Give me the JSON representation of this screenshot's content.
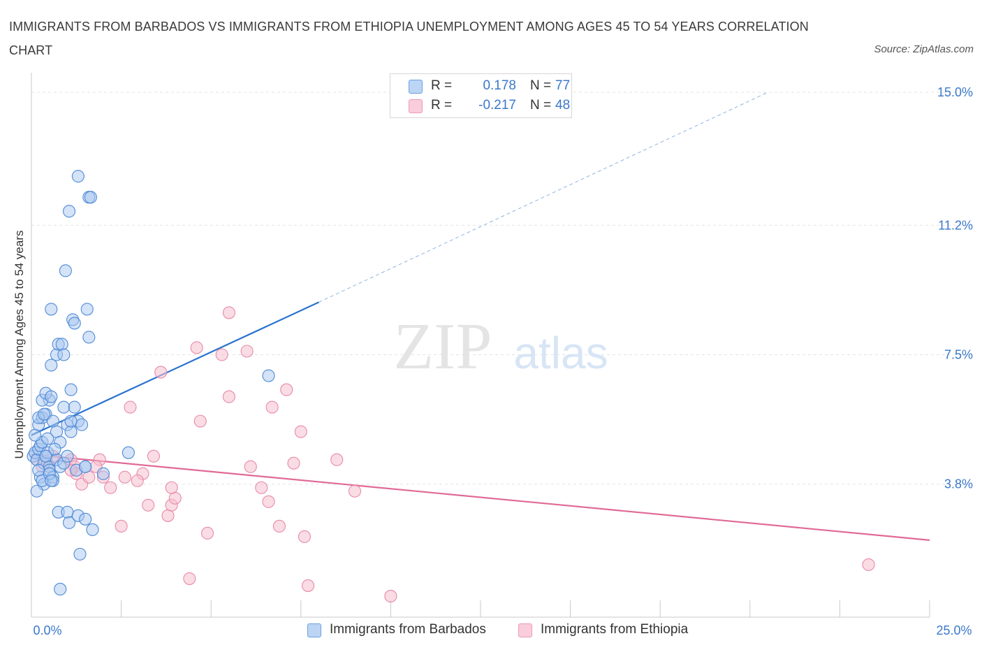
{
  "title": "IMMIGRANTS FROM BARBADOS VS IMMIGRANTS FROM ETHIOPIA UNEMPLOYMENT AMONG AGES 45 TO 54 YEARS CORRELATION CHART",
  "source": "Source: ZipAtlas.com",
  "watermark": {
    "zip": "ZIP",
    "atlas": "atlas"
  },
  "legend": {
    "series1": {
      "r_label": "R =",
      "r_value": "0.178",
      "n_label": "N =",
      "n_value": "77"
    },
    "series2": {
      "r_label": "R =",
      "r_value": "-0.217",
      "n_label": "N =",
      "n_value": "48"
    }
  },
  "colors": {
    "blue_fill": "#a9c8ef",
    "blue_stroke": "#4f8ad6",
    "blue_line": "#2a72cf",
    "pink_fill": "#f6bfd0",
    "pink_stroke": "#e78aa8",
    "pink_line": "#e06a96",
    "tick_text": "#3a78c9"
  },
  "chart_data": {
    "type": "scatter",
    "title": "IMMIGRANTS FROM BARBADOS VS IMMIGRANTS FROM ETHIOPIA UNEMPLOYMENT AMONG AGES 45 TO 54 YEARS CORRELATION CHART",
    "xlabel": "",
    "ylabel": "Unemployment Among Ages 45 to 54 years",
    "xlim": [
      0,
      25
    ],
    "ylim": [
      0,
      15
    ],
    "x_tick_labels": {
      "min": "0.0%",
      "max": "25.0%"
    },
    "y_ticks": [
      {
        "value": 3.8,
        "label": "3.8%"
      },
      {
        "value": 7.5,
        "label": "7.5%"
      },
      {
        "value": 11.2,
        "label": "11.2%"
      },
      {
        "value": 15.0,
        "label": "15.0%"
      }
    ],
    "grid": true,
    "series": [
      {
        "name": "Immigrants from Barbados",
        "r": 0.178,
        "n": 77,
        "trend": {
          "x0": 0,
          "y0": 5.2,
          "x1": 8.0,
          "y1": 9.0,
          "dashed_to_x": 20.5,
          "dashed_to_y": 15.0
        },
        "points": [
          [
            0.05,
            4.6
          ],
          [
            0.1,
            4.7
          ],
          [
            0.15,
            4.5
          ],
          [
            0.2,
            4.8
          ],
          [
            0.25,
            4.9
          ],
          [
            0.3,
            5.0
          ],
          [
            0.35,
            4.4
          ],
          [
            0.4,
            4.6
          ],
          [
            0.45,
            4.7
          ],
          [
            0.5,
            4.3
          ],
          [
            0.1,
            5.2
          ],
          [
            0.2,
            5.5
          ],
          [
            0.3,
            5.7
          ],
          [
            0.4,
            5.8
          ],
          [
            0.5,
            6.2
          ],
          [
            0.6,
            5.6
          ],
          [
            0.7,
            5.3
          ],
          [
            0.8,
            5.0
          ],
          [
            0.25,
            4.0
          ],
          [
            0.35,
            3.8
          ],
          [
            0.5,
            4.2
          ],
          [
            0.6,
            4.0
          ],
          [
            0.7,
            4.5
          ],
          [
            0.8,
            4.3
          ],
          [
            0.9,
            4.4
          ],
          [
            1.0,
            4.6
          ],
          [
            0.6,
            3.9
          ],
          [
            0.9,
            6.0
          ],
          [
            1.0,
            5.5
          ],
          [
            1.1,
            5.3
          ],
          [
            0.15,
            3.6
          ],
          [
            0.3,
            6.2
          ],
          [
            0.4,
            6.4
          ],
          [
            0.55,
            6.3
          ],
          [
            0.7,
            7.5
          ],
          [
            0.75,
            7.8
          ],
          [
            0.85,
            7.8
          ],
          [
            0.9,
            7.5
          ],
          [
            0.55,
            7.2
          ],
          [
            1.1,
            6.5
          ],
          [
            1.2,
            6.0
          ],
          [
            1.3,
            5.6
          ],
          [
            1.4,
            5.5
          ],
          [
            1.1,
            5.6
          ],
          [
            0.2,
            4.2
          ],
          [
            0.3,
            3.9
          ],
          [
            0.4,
            4.6
          ],
          [
            0.45,
            5.1
          ],
          [
            0.65,
            4.8
          ],
          [
            0.5,
            4.1
          ],
          [
            0.55,
            3.9
          ],
          [
            1.25,
            4.2
          ],
          [
            1.5,
            4.3
          ],
          [
            2.7,
            4.7
          ],
          [
            0.75,
            3.0
          ],
          [
            1.0,
            3.0
          ],
          [
            1.05,
            2.7
          ],
          [
            1.3,
            2.9
          ],
          [
            1.5,
            2.8
          ],
          [
            1.7,
            2.5
          ],
          [
            1.35,
            1.8
          ],
          [
            0.8,
            0.8
          ],
          [
            1.15,
            8.5
          ],
          [
            1.55,
            8.8
          ],
          [
            1.6,
            8.0
          ],
          [
            0.55,
            8.8
          ],
          [
            0.95,
            9.9
          ],
          [
            1.05,
            11.6
          ],
          [
            1.3,
            12.6
          ],
          [
            1.6,
            12.0
          ],
          [
            1.65,
            12.0
          ],
          [
            1.2,
            8.4
          ],
          [
            6.6,
            6.9
          ],
          [
            0.2,
            5.7
          ],
          [
            0.35,
            5.8
          ],
          [
            1.5,
            4.3
          ],
          [
            2.0,
            4.1
          ]
        ]
      },
      {
        "name": "Immigrants from Ethiopia",
        "r": -0.217,
        "n": 48,
        "trend": {
          "x0": 0,
          "y0": 4.65,
          "x1": 25,
          "y1": 2.2
        },
        "points": [
          [
            0.15,
            4.5
          ],
          [
            0.3,
            4.3
          ],
          [
            0.45,
            4.4
          ],
          [
            0.6,
            4.6
          ],
          [
            1.1,
            4.5
          ],
          [
            1.2,
            4.3
          ],
          [
            1.25,
            4.1
          ],
          [
            1.4,
            3.8
          ],
          [
            1.6,
            4.0
          ],
          [
            2.0,
            4.0
          ],
          [
            1.9,
            4.5
          ],
          [
            1.8,
            4.3
          ],
          [
            2.2,
            3.7
          ],
          [
            2.6,
            4.0
          ],
          [
            3.1,
            4.1
          ],
          [
            3.4,
            4.6
          ],
          [
            2.95,
            3.9
          ],
          [
            2.5,
            2.6
          ],
          [
            3.25,
            3.2
          ],
          [
            3.8,
            2.9
          ],
          [
            3.9,
            3.2
          ],
          [
            4.0,
            3.4
          ],
          [
            3.9,
            3.7
          ],
          [
            2.75,
            6.0
          ],
          [
            3.6,
            7.0
          ],
          [
            4.6,
            7.7
          ],
          [
            5.3,
            7.5
          ],
          [
            5.5,
            6.3
          ],
          [
            4.7,
            5.6
          ],
          [
            6.0,
            7.6
          ],
          [
            5.5,
            8.7
          ],
          [
            6.7,
            6.0
          ],
          [
            7.1,
            6.5
          ],
          [
            7.5,
            5.3
          ],
          [
            8.5,
            4.5
          ],
          [
            6.1,
            4.3
          ],
          [
            7.3,
            4.4
          ],
          [
            6.4,
            3.7
          ],
          [
            6.6,
            3.3
          ],
          [
            6.9,
            2.6
          ],
          [
            4.9,
            2.4
          ],
          [
            7.6,
            2.3
          ],
          [
            9.0,
            3.6
          ],
          [
            4.4,
            1.1
          ],
          [
            7.7,
            0.9
          ],
          [
            10.0,
            0.6
          ],
          [
            23.3,
            1.5
          ],
          [
            1.1,
            4.2
          ]
        ]
      }
    ]
  },
  "bottom_legend": {
    "series1": "Immigrants from Barbados",
    "series2": "Immigrants from Ethiopia"
  }
}
